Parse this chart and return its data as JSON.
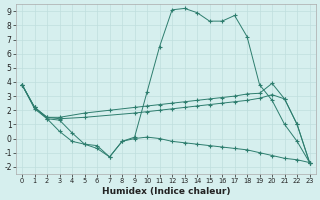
{
  "xlabel": "Humidex (Indice chaleur)",
  "bg_color": "#d6efee",
  "grid_color": "#c0dede",
  "line_color": "#2d7d6e",
  "xlim": [
    -0.5,
    23.5
  ],
  "ylim": [
    -2.5,
    9.5
  ],
  "xticks": [
    0,
    1,
    2,
    3,
    4,
    5,
    6,
    7,
    8,
    9,
    10,
    11,
    12,
    13,
    14,
    15,
    16,
    17,
    18,
    19,
    20,
    21,
    22,
    23
  ],
  "yticks": [
    -2,
    -1,
    0,
    1,
    2,
    3,
    4,
    5,
    6,
    7,
    8,
    9
  ],
  "series": [
    {
      "x": [
        0,
        1,
        2,
        3,
        4,
        5,
        6,
        7,
        8,
        9,
        10,
        11,
        12,
        13,
        14,
        15,
        16,
        17,
        18,
        19,
        20,
        21,
        22,
        23
      ],
      "y": [
        3.8,
        2.2,
        1.4,
        0.5,
        -0.2,
        -0.4,
        -0.7,
        -1.3,
        -0.2,
        0.1,
        3.3,
        6.5,
        9.1,
        9.2,
        8.9,
        8.3,
        8.3,
        8.7,
        7.2,
        3.8,
        2.7,
        1.0,
        -0.2,
        -1.7
      ]
    },
    {
      "x": [
        0,
        1,
        2,
        3,
        5,
        7,
        9,
        10,
        11,
        12,
        13,
        14,
        15,
        16,
        17,
        18,
        19,
        20,
        21,
        22,
        23
      ],
      "y": [
        3.8,
        2.2,
        1.5,
        1.5,
        1.8,
        2.0,
        2.2,
        2.3,
        2.4,
        2.5,
        2.6,
        2.7,
        2.8,
        2.9,
        3.0,
        3.15,
        3.2,
        3.9,
        2.8,
        1.0,
        -1.7
      ]
    },
    {
      "x": [
        0,
        1,
        2,
        3,
        5,
        9,
        10,
        11,
        12,
        13,
        14,
        15,
        16,
        17,
        18,
        19,
        20,
        21,
        22,
        23
      ],
      "y": [
        3.8,
        2.2,
        1.5,
        1.4,
        1.5,
        1.8,
        1.9,
        2.0,
        2.1,
        2.2,
        2.3,
        2.4,
        2.5,
        2.6,
        2.7,
        2.85,
        3.1,
        2.8,
        1.0,
        -1.7
      ]
    },
    {
      "x": [
        0,
        1,
        2,
        3,
        4,
        5,
        6,
        7,
        8,
        9,
        10,
        11,
        12,
        13,
        14,
        15,
        16,
        17,
        18,
        19,
        20,
        21,
        22,
        23
      ],
      "y": [
        3.8,
        2.1,
        1.4,
        1.3,
        0.4,
        -0.4,
        -0.5,
        -1.3,
        -0.2,
        0.0,
        0.1,
        0.0,
        -0.2,
        -0.3,
        -0.4,
        -0.5,
        -0.6,
        -0.7,
        -0.8,
        -1.0,
        -1.2,
        -1.4,
        -1.5,
        -1.7
      ]
    }
  ]
}
